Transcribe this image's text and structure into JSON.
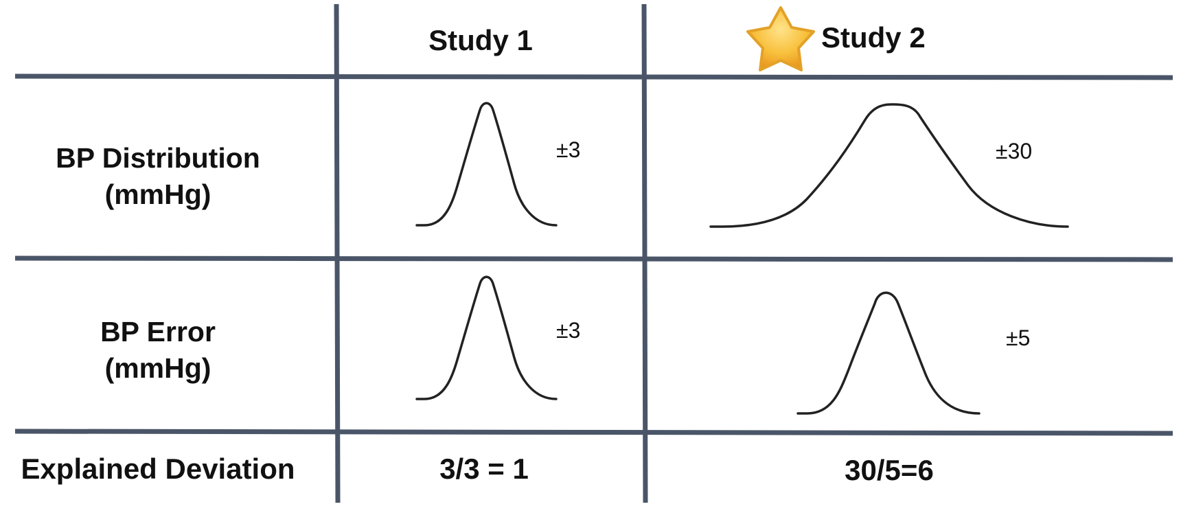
{
  "columns": {
    "study1": "Study 1",
    "study2": "Study 2"
  },
  "rows": {
    "distribution": {
      "line1": "BP Distribution",
      "line2": "(mmHg)"
    },
    "error": {
      "line1": "BP Error",
      "line2": "(mmHg)"
    },
    "explained": "Explained Deviation"
  },
  "cells": {
    "study1": {
      "distribution": "±3",
      "error": "±3",
      "explained": "3/3 = 1"
    },
    "study2": {
      "distribution": "±30",
      "error": "±5",
      "explained": "30/5=6"
    }
  },
  "highlight_icon": "star-icon",
  "colors": {
    "grid": "#4a5568",
    "curve": "#222222",
    "text": "#111111",
    "star": "#f5b82e"
  }
}
